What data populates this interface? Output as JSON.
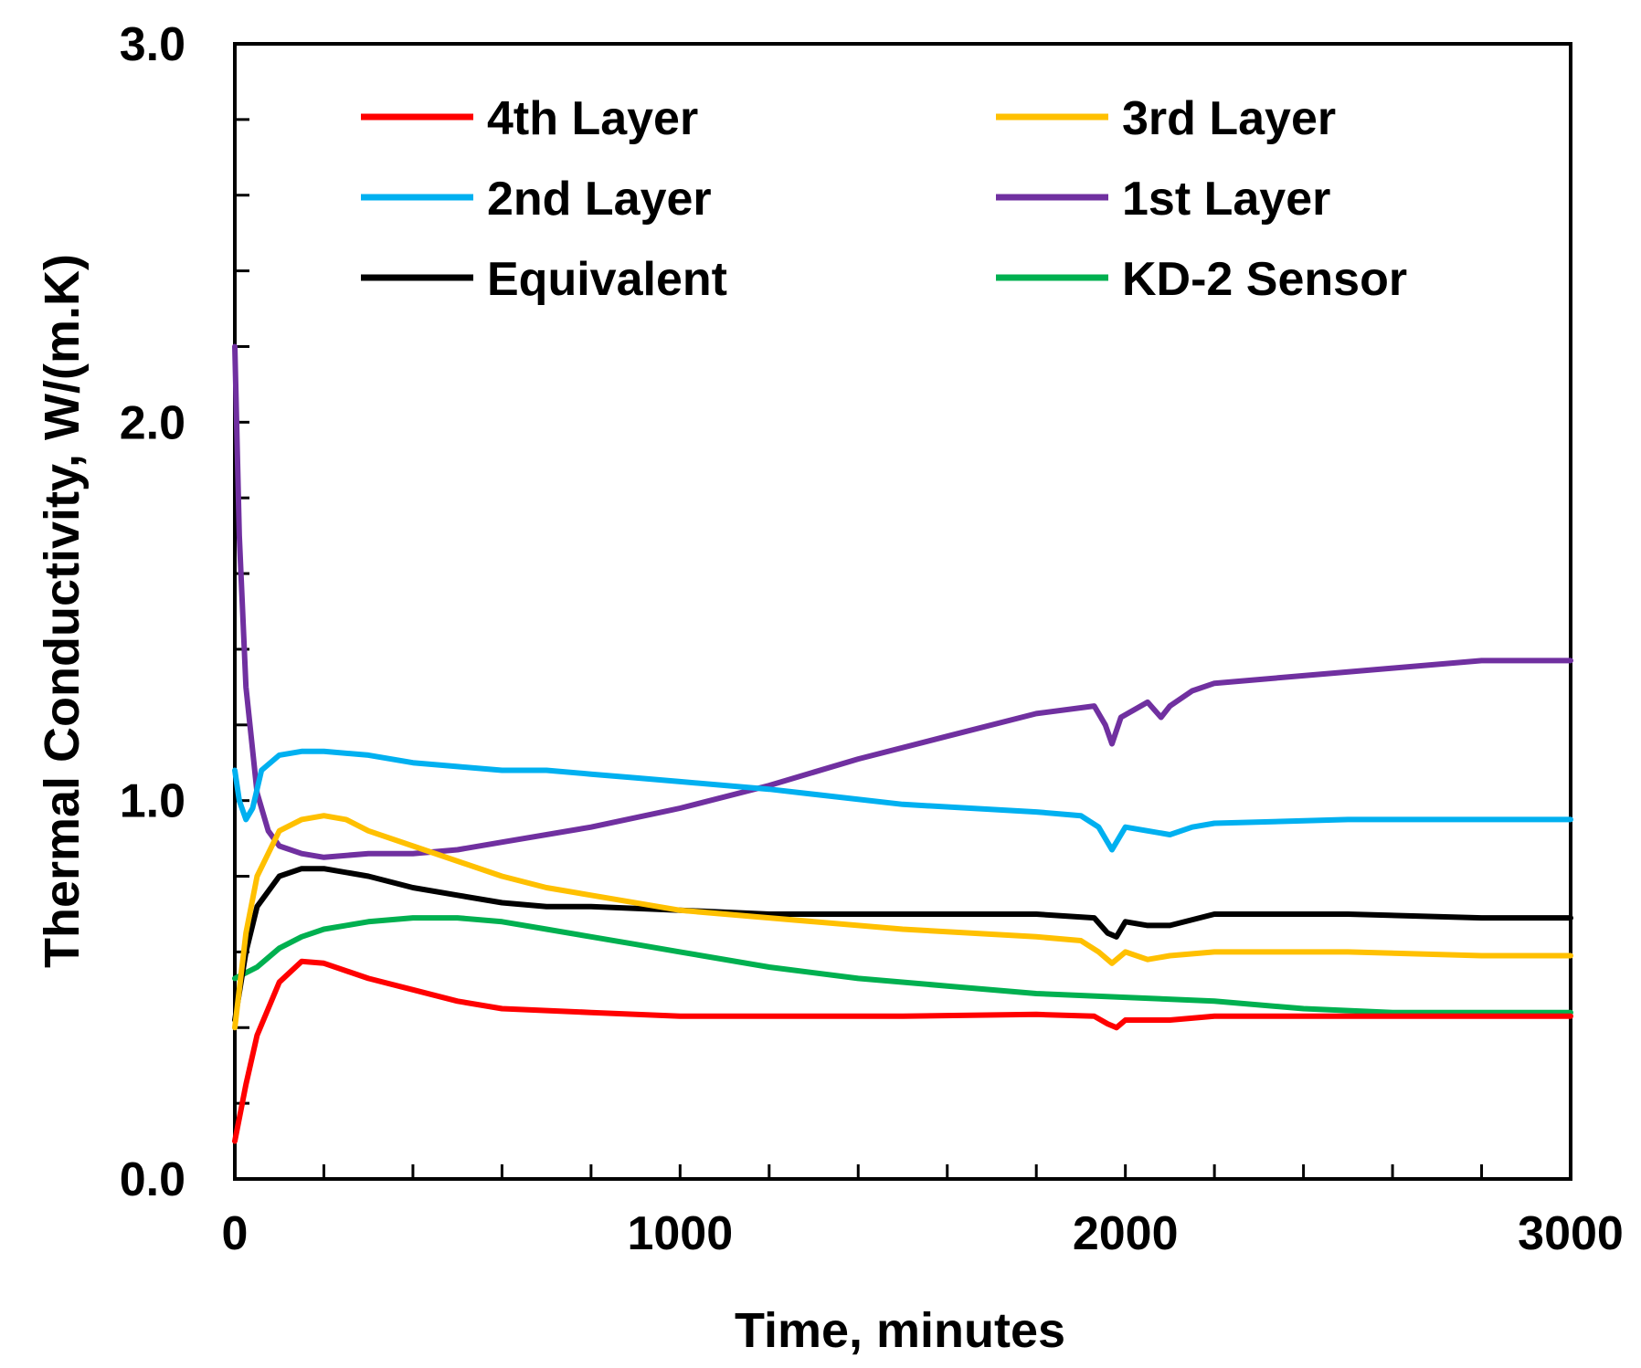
{
  "chart_data": {
    "type": "line",
    "title": "",
    "xlabel": "Time, minutes",
    "ylabel": "Thermal Conductivity, W/(m.K)",
    "xlim": [
      0,
      3000
    ],
    "ylim": [
      0,
      3.0
    ],
    "x_ticks": [
      "0",
      "1000",
      "2000",
      "3000"
    ],
    "y_ticks": [
      "0.0",
      "1.0",
      "2.0",
      "3.0"
    ],
    "grid": false,
    "legend_position": "top",
    "series": [
      {
        "name": "4th Layer",
        "color": "#ff0000",
        "x": [
          0,
          25,
          50,
          100,
          150,
          200,
          300,
          400,
          500,
          600,
          800,
          1000,
          1200,
          1500,
          1800,
          1930,
          1960,
          1980,
          2000,
          2050,
          2100,
          2200,
          2500,
          2800,
          3000
        ],
        "y": [
          0.1,
          0.25,
          0.38,
          0.52,
          0.575,
          0.57,
          0.53,
          0.5,
          0.47,
          0.45,
          0.44,
          0.43,
          0.43,
          0.43,
          0.435,
          0.43,
          0.41,
          0.4,
          0.42,
          0.42,
          0.42,
          0.43,
          0.43,
          0.43,
          0.43
        ]
      },
      {
        "name": "3rd Layer",
        "color": "#ffc000",
        "x": [
          0,
          25,
          50,
          100,
          150,
          200,
          250,
          300,
          400,
          500,
          600,
          700,
          800,
          1000,
          1200,
          1500,
          1800,
          1900,
          1940,
          1970,
          2000,
          2050,
          2100,
          2200,
          2500,
          2800,
          3000
        ],
        "y": [
          0.4,
          0.65,
          0.8,
          0.92,
          0.95,
          0.96,
          0.95,
          0.92,
          0.88,
          0.84,
          0.8,
          0.77,
          0.75,
          0.71,
          0.69,
          0.66,
          0.64,
          0.63,
          0.6,
          0.57,
          0.6,
          0.58,
          0.59,
          0.6,
          0.6,
          0.59,
          0.59
        ]
      },
      {
        "name": "2nd Layer",
        "color": "#00b0f0",
        "x": [
          0,
          10,
          25,
          40,
          60,
          100,
          150,
          200,
          300,
          400,
          500,
          600,
          700,
          800,
          900,
          1000,
          1200,
          1500,
          1800,
          1900,
          1940,
          1970,
          2000,
          2050,
          2100,
          2150,
          2200,
          2500,
          2800,
          3000
        ],
        "y": [
          1.08,
          1.0,
          0.95,
          0.98,
          1.08,
          1.12,
          1.13,
          1.13,
          1.12,
          1.1,
          1.09,
          1.08,
          1.08,
          1.07,
          1.06,
          1.05,
          1.03,
          0.99,
          0.97,
          0.96,
          0.93,
          0.87,
          0.93,
          0.92,
          0.91,
          0.93,
          0.94,
          0.95,
          0.95,
          0.95
        ]
      },
      {
        "name": "1st Layer",
        "color": "#7030a0",
        "x": [
          0,
          10,
          25,
          50,
          75,
          100,
          150,
          200,
          300,
          400,
          500,
          600,
          800,
          1000,
          1200,
          1400,
          1600,
          1800,
          1930,
          1955,
          1970,
          1990,
          2050,
          2080,
          2100,
          2150,
          2200,
          2400,
          2600,
          2800,
          3000
        ],
        "y": [
          2.2,
          1.7,
          1.3,
          1.02,
          0.92,
          0.88,
          0.86,
          0.85,
          0.86,
          0.86,
          0.87,
          0.89,
          0.93,
          0.98,
          1.04,
          1.11,
          1.17,
          1.23,
          1.25,
          1.2,
          1.15,
          1.22,
          1.26,
          1.22,
          1.25,
          1.29,
          1.31,
          1.33,
          1.35,
          1.37,
          1.37
        ]
      },
      {
        "name": "Equivalent",
        "color": "#000000",
        "x": [
          0,
          25,
          50,
          100,
          150,
          200,
          300,
          400,
          500,
          600,
          700,
          800,
          1000,
          1200,
          1500,
          1800,
          1930,
          1960,
          1980,
          2000,
          2050,
          2100,
          2200,
          2500,
          2800,
          3000
        ],
        "y": [
          0.42,
          0.6,
          0.72,
          0.8,
          0.82,
          0.82,
          0.8,
          0.77,
          0.75,
          0.73,
          0.72,
          0.72,
          0.71,
          0.7,
          0.7,
          0.7,
          0.69,
          0.65,
          0.64,
          0.68,
          0.67,
          0.67,
          0.7,
          0.7,
          0.69,
          0.69
        ]
      },
      {
        "name": "KD-2 Sensor",
        "color": "#00b050",
        "x": [
          0,
          50,
          100,
          150,
          200,
          300,
          400,
          500,
          600,
          700,
          800,
          900,
          1000,
          1200,
          1400,
          1600,
          1800,
          2000,
          2200,
          2400,
          2600,
          2800,
          3000
        ],
        "y": [
          0.53,
          0.56,
          0.61,
          0.64,
          0.66,
          0.68,
          0.69,
          0.69,
          0.68,
          0.66,
          0.64,
          0.62,
          0.6,
          0.56,
          0.53,
          0.51,
          0.49,
          0.48,
          0.47,
          0.45,
          0.44,
          0.44,
          0.44
        ]
      }
    ]
  }
}
